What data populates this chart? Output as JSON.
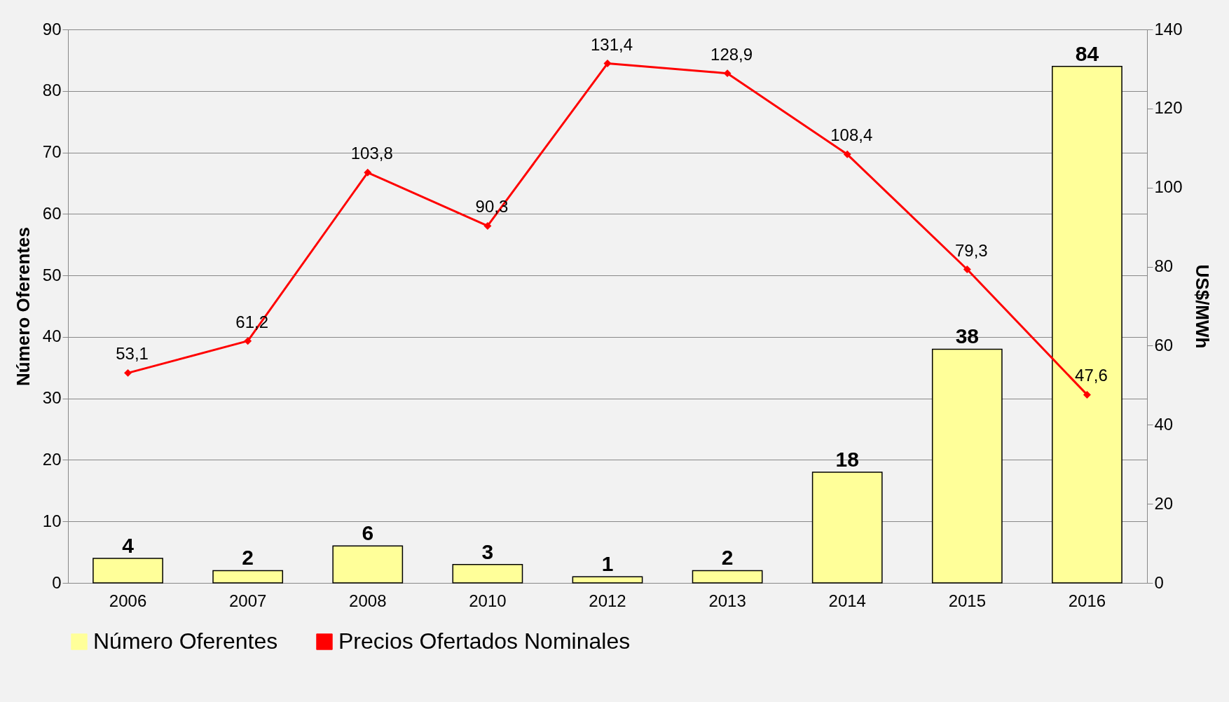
{
  "chart_data": {
    "type": "bar",
    "ylabel": "Número Oferentes",
    "y2label": "US$/MWh",
    "categories": [
      "2006",
      "2007",
      "2008",
      "2010",
      "2012",
      "2013",
      "2014",
      "2015",
      "2016"
    ],
    "series": [
      {
        "name": "Número Oferentes",
        "color": "#ffff99",
        "values": [
          4,
          2,
          6,
          3,
          1,
          2,
          18,
          38,
          84
        ],
        "value_labels": [
          "4",
          "2",
          "6",
          "3",
          "1",
          "2",
          "18",
          "38",
          "84"
        ]
      },
      {
        "name": "Precios Ofertados Nominales",
        "type": "line",
        "axis": "y2",
        "color": "#ff0000",
        "marker": "diamond",
        "values": [
          53.1,
          61.2,
          103.8,
          90.3,
          131.4,
          128.9,
          108.4,
          79.3,
          47.6
        ],
        "value_labels": [
          "53,1",
          "61,2",
          "103,8",
          "90,3",
          "131,4",
          "128,9",
          "108,4",
          "79,3",
          "47,6"
        ]
      }
    ],
    "ylim": [
      0,
      90
    ],
    "yticks": [
      0,
      10,
      20,
      30,
      40,
      50,
      60,
      70,
      80,
      90
    ],
    "y2lim": [
      0,
      140
    ],
    "y2ticks": [
      0,
      20,
      40,
      60,
      80,
      100,
      120,
      140
    ],
    "grid": "y",
    "legend": "bottom"
  }
}
